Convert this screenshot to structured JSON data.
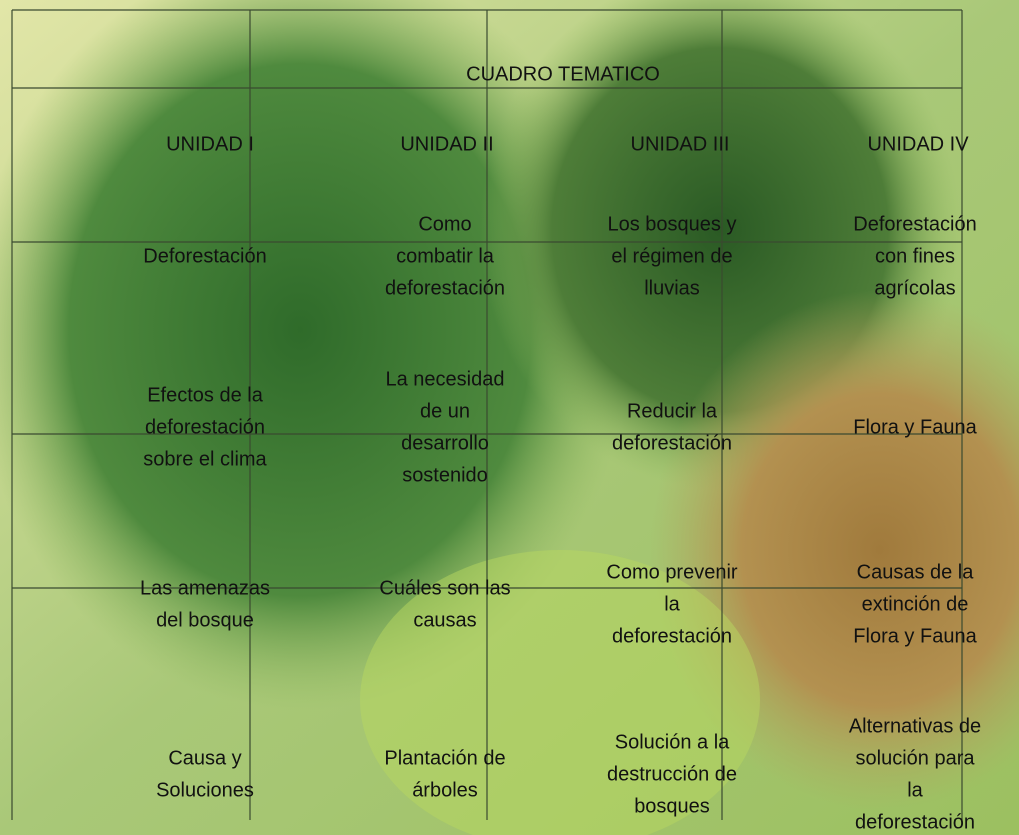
{
  "header": {
    "title": "CUADRO TEMATICO"
  },
  "table": {
    "columns": [
      "UNIDAD I",
      "UNIDAD II",
      "UNIDAD III",
      "UNIDAD IV"
    ],
    "rows": [
      [
        [
          "Deforestación"
        ],
        [
          "Como",
          "combatir la",
          "deforestación"
        ],
        [
          "Los bosques y",
          "el régimen de",
          "lluvias"
        ],
        [
          "Deforestación",
          "con fines",
          "agrícolas"
        ]
      ],
      [
        [
          "Efectos de la",
          "deforestación",
          "sobre el clima"
        ],
        [
          "La necesidad",
          "de un",
          "desarrollo",
          "sostenido"
        ],
        [
          "Reducir la",
          "deforestación"
        ],
        [
          "Flora y Fauna"
        ]
      ],
      [
        [
          "Las amenazas",
          "del bosque"
        ],
        [
          "Cuáles son las",
          "causas"
        ],
        [
          "Como prevenir",
          "la",
          "deforestación"
        ],
        [
          "Causas de la",
          "extinción de",
          "Flora y Fauna"
        ]
      ],
      [
        [
          "Causa y",
          "Soluciones"
        ],
        [
          "Plantación de",
          "árboles"
        ],
        [
          "Solución a la",
          "destrucción de",
          "bosques"
        ],
        [
          "Alternativas de",
          "solución para",
          "la",
          "deforestación"
        ]
      ]
    ]
  }
}
